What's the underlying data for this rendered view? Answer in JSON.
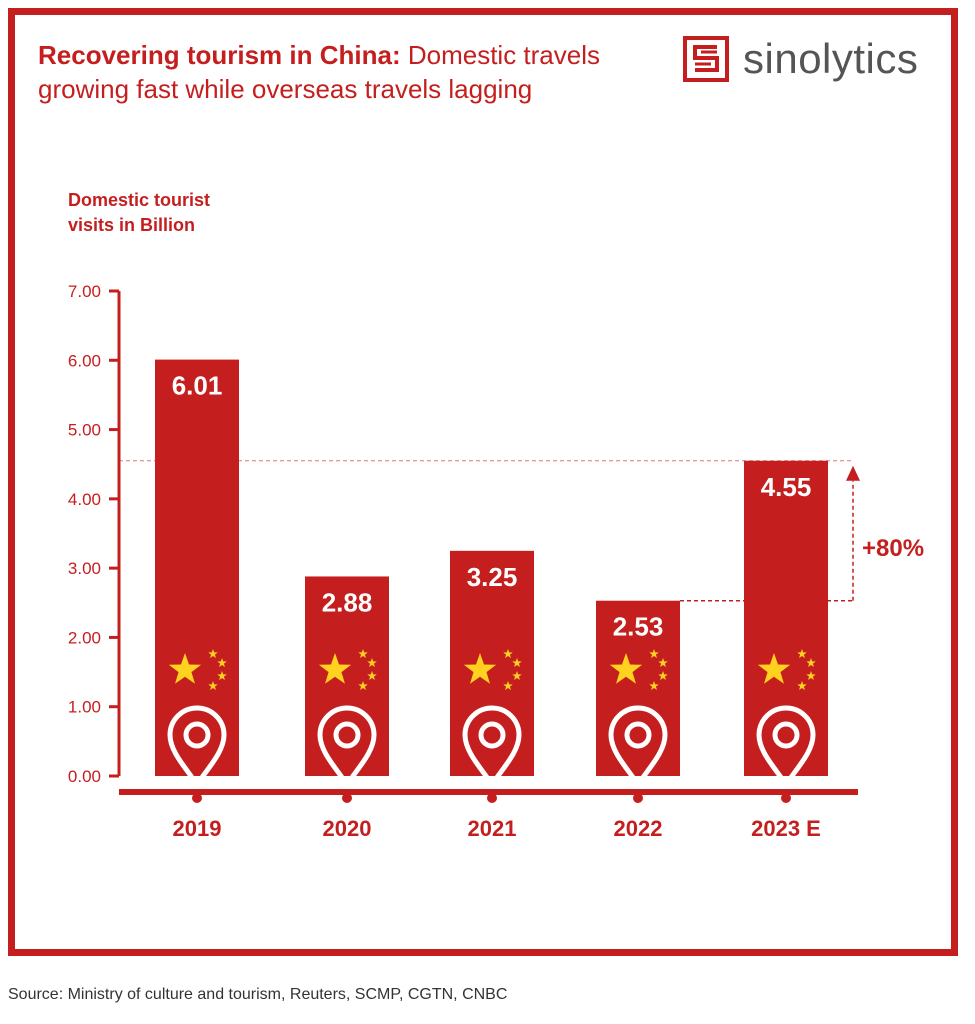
{
  "header": {
    "title_bold": "Recovering tourism in China:",
    "title_rest": " Domestic travels growing fast while overseas travels lagging",
    "brand": "sinolytics",
    "logo_icon": "sinolytics-s-logo-icon"
  },
  "footer": {
    "source": "Source: Ministry of culture and tourism, Reuters, SCMP, CGTN, CNBC"
  },
  "colors": {
    "accent": "#c41f1e",
    "star": "#ffd21f",
    "text_gray": "#555555"
  },
  "chart_data": {
    "type": "bar",
    "ylabel": "Domestic tourist visits in Billion",
    "ylim": [
      0,
      7
    ],
    "yticks": [
      "0.00",
      "1.00",
      "2.00",
      "3.00",
      "4.00",
      "5.00",
      "6.00",
      "7.00"
    ],
    "categories": [
      "2019",
      "2020",
      "2021",
      "2022",
      "2023 E"
    ],
    "values": [
      6.01,
      2.88,
      3.25,
      2.53,
      4.55
    ],
    "value_labels": [
      "6.01",
      "2.88",
      "3.25",
      "2.53",
      "4.55"
    ],
    "annotation": {
      "text": "+80%",
      "from": "2022",
      "to": "2023 E"
    },
    "bar_icons": [
      "china-flag-stars-icon",
      "location-pin-icon"
    ],
    "grid": false,
    "legend": "none"
  }
}
